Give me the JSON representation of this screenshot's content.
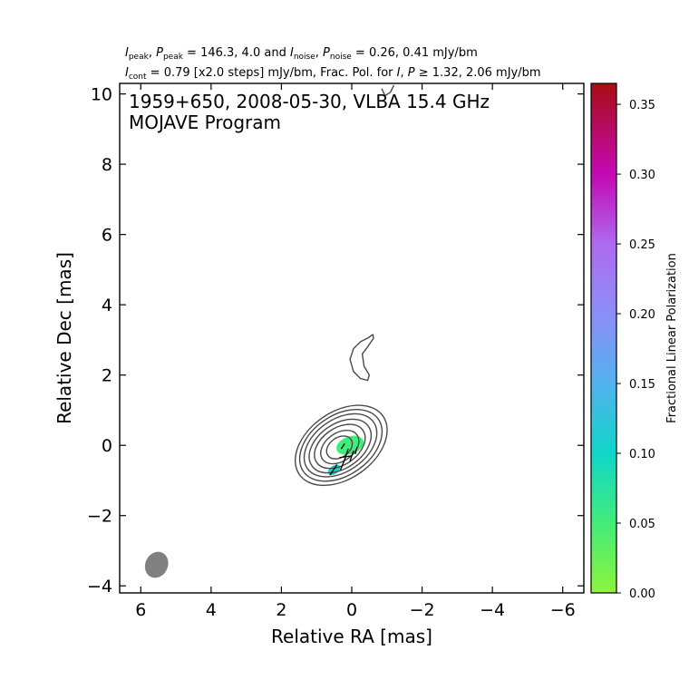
{
  "header": {
    "line1": {
      "I_sym": "I",
      "I_sub": "peak",
      "sep1": ", ",
      "P_sym": "P",
      "P_sub": "peak",
      "mid1": " = 146.3, 4.0 and ",
      "In_sym": "I",
      "In_sub": "noise",
      "sep2": ", ",
      "Pn_sym": "P",
      "Pn_sub": "noise",
      "tail1": " = 0.26, 0.41 mJy/bm"
    },
    "line2": {
      "Ic_sym": "I",
      "Ic_sub": "cont",
      "mid2": " = 0.79 [x2.0 steps] mJy/bm, Frac. Pol. for ",
      "I2": "I",
      "comma": ", ",
      "P2": "P",
      "tail2": " ≥ 1.32, 2.06 mJy/bm"
    }
  },
  "annotation": {
    "line1": "1959+650, 2008-05-30, VLBA 15.4 GHz",
    "line2": "MOJAVE Program"
  },
  "chart_data": {
    "type": "contour",
    "xlabel": "Relative RA [mas]",
    "ylabel": "Relative Dec [mas]",
    "xlim": [
      6.6,
      -6.6
    ],
    "ylim": [
      -4.2,
      10.3
    ],
    "xticks": [
      6,
      4,
      2,
      0,
      -2,
      -4,
      -6
    ],
    "xtick_labels": [
      "6",
      "4",
      "2",
      "0",
      "−2",
      "−4",
      "−6"
    ],
    "yticks": [
      -4,
      -2,
      0,
      2,
      4,
      6,
      8,
      10
    ],
    "ytick_labels": [
      "−4",
      "−2",
      "0",
      "2",
      "4",
      "6",
      "8",
      "10"
    ],
    "contour_color": "#4a4a4a",
    "core_contours": [
      {
        "level": 1,
        "cx": 0.3,
        "cy": 0.0,
        "rx": 1.45,
        "ry": 0.95
      },
      {
        "level": 2,
        "cx": 0.31,
        "cy": 0.0,
        "rx": 1.3,
        "ry": 0.85
      },
      {
        "level": 3,
        "cx": 0.32,
        "cy": 0.0,
        "rx": 1.15,
        "ry": 0.74
      },
      {
        "level": 4,
        "cx": 0.33,
        "cy": -0.02,
        "rx": 0.98,
        "ry": 0.63
      },
      {
        "level": 5,
        "cx": 0.34,
        "cy": -0.03,
        "rx": 0.8,
        "ry": 0.52
      },
      {
        "level": 6,
        "cx": 0.34,
        "cy": -0.05,
        "rx": 0.6,
        "ry": 0.4
      },
      {
        "level": 7,
        "cx": 0.35,
        "cy": -0.06,
        "rx": 0.4,
        "ry": 0.28
      }
    ],
    "contour_angle_deg": 35,
    "outer_contours": [
      {
        "name": "north-blob",
        "points": [
          [
            -0.45,
            3.05
          ],
          [
            -0.6,
            3.15
          ],
          [
            -0.62,
            3.05
          ],
          [
            -0.45,
            2.8
          ],
          [
            -0.3,
            2.6
          ],
          [
            -0.35,
            2.25
          ],
          [
            -0.5,
            2.0
          ],
          [
            -0.45,
            1.85
          ],
          [
            -0.25,
            1.9
          ],
          [
            -0.05,
            2.1
          ],
          [
            0.05,
            2.45
          ],
          [
            -0.05,
            2.75
          ],
          [
            -0.25,
            2.95
          ],
          [
            -0.45,
            3.05
          ]
        ]
      },
      {
        "name": "top-edge-fragment",
        "points": [
          [
            -0.85,
            10.15
          ],
          [
            -0.95,
            9.95
          ],
          [
            -1.1,
            10.05
          ],
          [
            -1.2,
            10.25
          ]
        ]
      }
    ],
    "polarization_patches": [
      {
        "cx": 0.05,
        "cy": 0.0,
        "rx": 0.4,
        "ry": 0.25,
        "angle_deg": 20,
        "frac_pol": 0.04
      },
      {
        "cx": 0.5,
        "cy": -0.7,
        "rx": 0.2,
        "ry": 0.12,
        "angle_deg": 35,
        "frac_pol": 0.06
      }
    ],
    "evpa_vectors": [
      {
        "x1": 0.62,
        "y1": -0.85,
        "x2": 0.42,
        "y2": -0.55
      },
      {
        "x1": 0.32,
        "y1": -0.7,
        "x2": 0.18,
        "y2": -0.35
      },
      {
        "x1": 0.2,
        "y1": -0.4,
        "x2": 0.1,
        "y2": -0.1
      },
      {
        "x1": 0.05,
        "y1": -0.45,
        "x2": -0.05,
        "y2": -0.15
      },
      {
        "x1": 0.3,
        "y1": -0.1,
        "x2": 0.2,
        "y2": 0.05
      },
      {
        "x1": -0.1,
        "y1": -0.25,
        "x2": -0.15,
        "y2": -0.05
      },
      {
        "x1": 0.0,
        "y1": -0.3,
        "x2": 0.35,
        "y2": -0.35
      }
    ],
    "beam": {
      "cx": 5.55,
      "cy": -3.4,
      "rx": 0.32,
      "ry": 0.38,
      "angle_deg": 25,
      "color": "#808080"
    },
    "colorbar": {
      "label": "Fractional Linear Polarization",
      "range": [
        0.0,
        0.365
      ],
      "ticks": [
        0.0,
        0.05,
        0.1,
        0.15,
        0.2,
        0.25,
        0.3,
        0.35
      ],
      "tick_labels": [
        "0.00",
        "0.05",
        "0.10",
        "0.15",
        "0.20",
        "0.25",
        "0.30",
        "0.35"
      ],
      "stops": [
        {
          "v": 0.0,
          "color": "#8cf53c"
        },
        {
          "v": 0.05,
          "color": "#42ec7a"
        },
        {
          "v": 0.1,
          "color": "#10d6c8"
        },
        {
          "v": 0.15,
          "color": "#52b2ee"
        },
        {
          "v": 0.2,
          "color": "#8c8ef8"
        },
        {
          "v": 0.25,
          "color": "#ae6af0"
        },
        {
          "v": 0.3,
          "color": "#c408b4"
        },
        {
          "v": 0.365,
          "color": "#a80e12"
        }
      ]
    }
  }
}
